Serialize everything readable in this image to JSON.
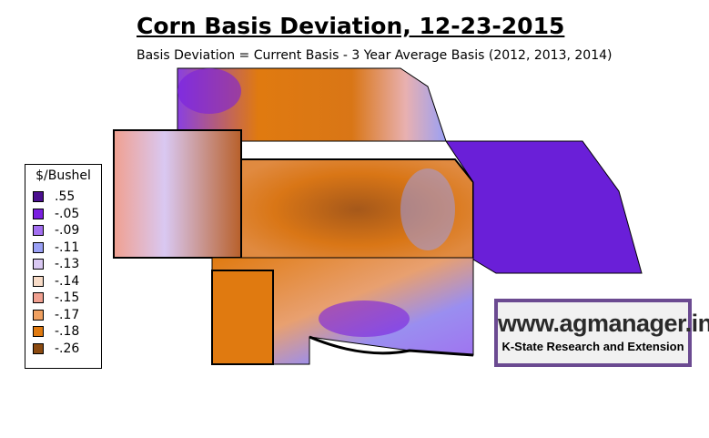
{
  "header": {
    "title": "Corn Basis Deviation, 12-23-2015",
    "subtitle": "Basis Deviation = Current Basis - 3 Year Average Basis (2012, 2013, 2014)"
  },
  "legend": {
    "title": "$/Bushel",
    "items": [
      {
        "label": ".55",
        "color": "#4b0f8f"
      },
      {
        "label": "-.05",
        "color": "#7a1fe0"
      },
      {
        "label": "-.09",
        "color": "#a36ff0"
      },
      {
        "label": "-.11",
        "color": "#9aa0f5"
      },
      {
        "label": "-.13",
        "color": "#d9c8f2"
      },
      {
        "label": "-.14",
        "color": "#f8dcc8"
      },
      {
        "label": "-.15",
        "color": "#f0a090"
      },
      {
        "label": "-.17",
        "color": "#f0a060"
      },
      {
        "label": "-.18",
        "color": "#e07a10"
      },
      {
        "label": "-.26",
        "color": "#8b4a10"
      }
    ]
  },
  "logo": {
    "url": "www.agmanager.info",
    "org": "K-State Research and Extension"
  }
}
